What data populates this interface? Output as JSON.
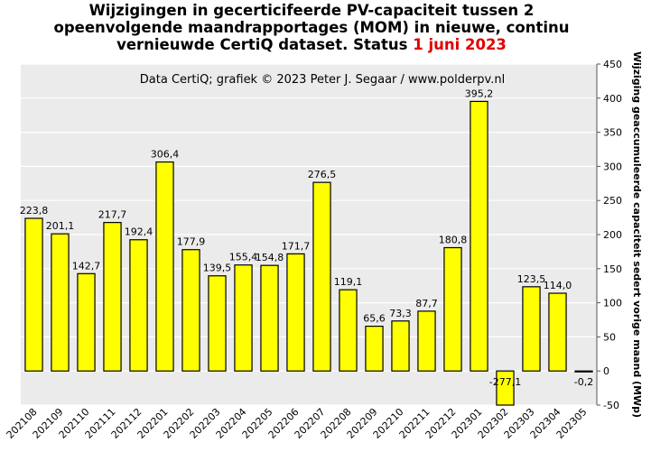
{
  "title": {
    "line1": "Wijzigingen in gecerticifeerde PV-capaciteit tussen 2",
    "line2": "opeenvolgende maandrapportages (MOM) in nieuwe, continu",
    "line3_prefix": "vernieuwde CertiQ dataset. Status ",
    "line3_date": "1 juni 2023"
  },
  "colors": {
    "bar": "#ffff00",
    "bar_stroke": "#000000",
    "plot_bg": "#ebebeb",
    "grid": "#ffffff",
    "date": "#e00000"
  },
  "chart_data": {
    "type": "bar",
    "title": "Wijzigingen in gecerticifeerde PV-capaciteit tussen 2 opeenvolgende maandrapportages (MOM) in nieuwe, continu vernieuwde CertiQ dataset. Status 1 juni 2023",
    "annotation": "Data CertiQ; grafiek © 2023 Peter J. Segaar / www.polderpv.nl",
    "ylabel": "Wijziging geaccumuleerde capaciteit sedert vorige maand (MWp)",
    "xlabel": "",
    "y_axis_side": "right",
    "ylim": [
      -50,
      450
    ],
    "yticks": [
      -50,
      0,
      50,
      100,
      150,
      200,
      250,
      300,
      350,
      400,
      450
    ],
    "grid": true,
    "categories": [
      "202108",
      "202109",
      "202110",
      "202111",
      "202112",
      "202201",
      "202202",
      "202203",
      "202204",
      "202205",
      "202206",
      "202207",
      "202208",
      "202209",
      "202210",
      "202211",
      "202212",
      "202301",
      "202302",
      "202303",
      "202304",
      "202305"
    ],
    "values": [
      223.8,
      201.1,
      142.7,
      217.7,
      192.4,
      306.4,
      177.9,
      139.5,
      155.4,
      154.8,
      171.7,
      276.5,
      119.1,
      65.6,
      73.3,
      87.7,
      180.8,
      395.2,
      -277.1,
      123.5,
      114.0,
      -0.2
    ],
    "data_labels": [
      "223,8",
      "201,1",
      "142,7",
      "217,7",
      "192,4",
      "306,4",
      "177,9",
      "139,5",
      "155,4",
      "154,8",
      "171,7",
      "276,5",
      "119,1",
      "65,6",
      "73,3",
      "87,7",
      "180,8",
      "395,2",
      "-277,1",
      "123,5",
      "114,0",
      "-0,2"
    ]
  }
}
